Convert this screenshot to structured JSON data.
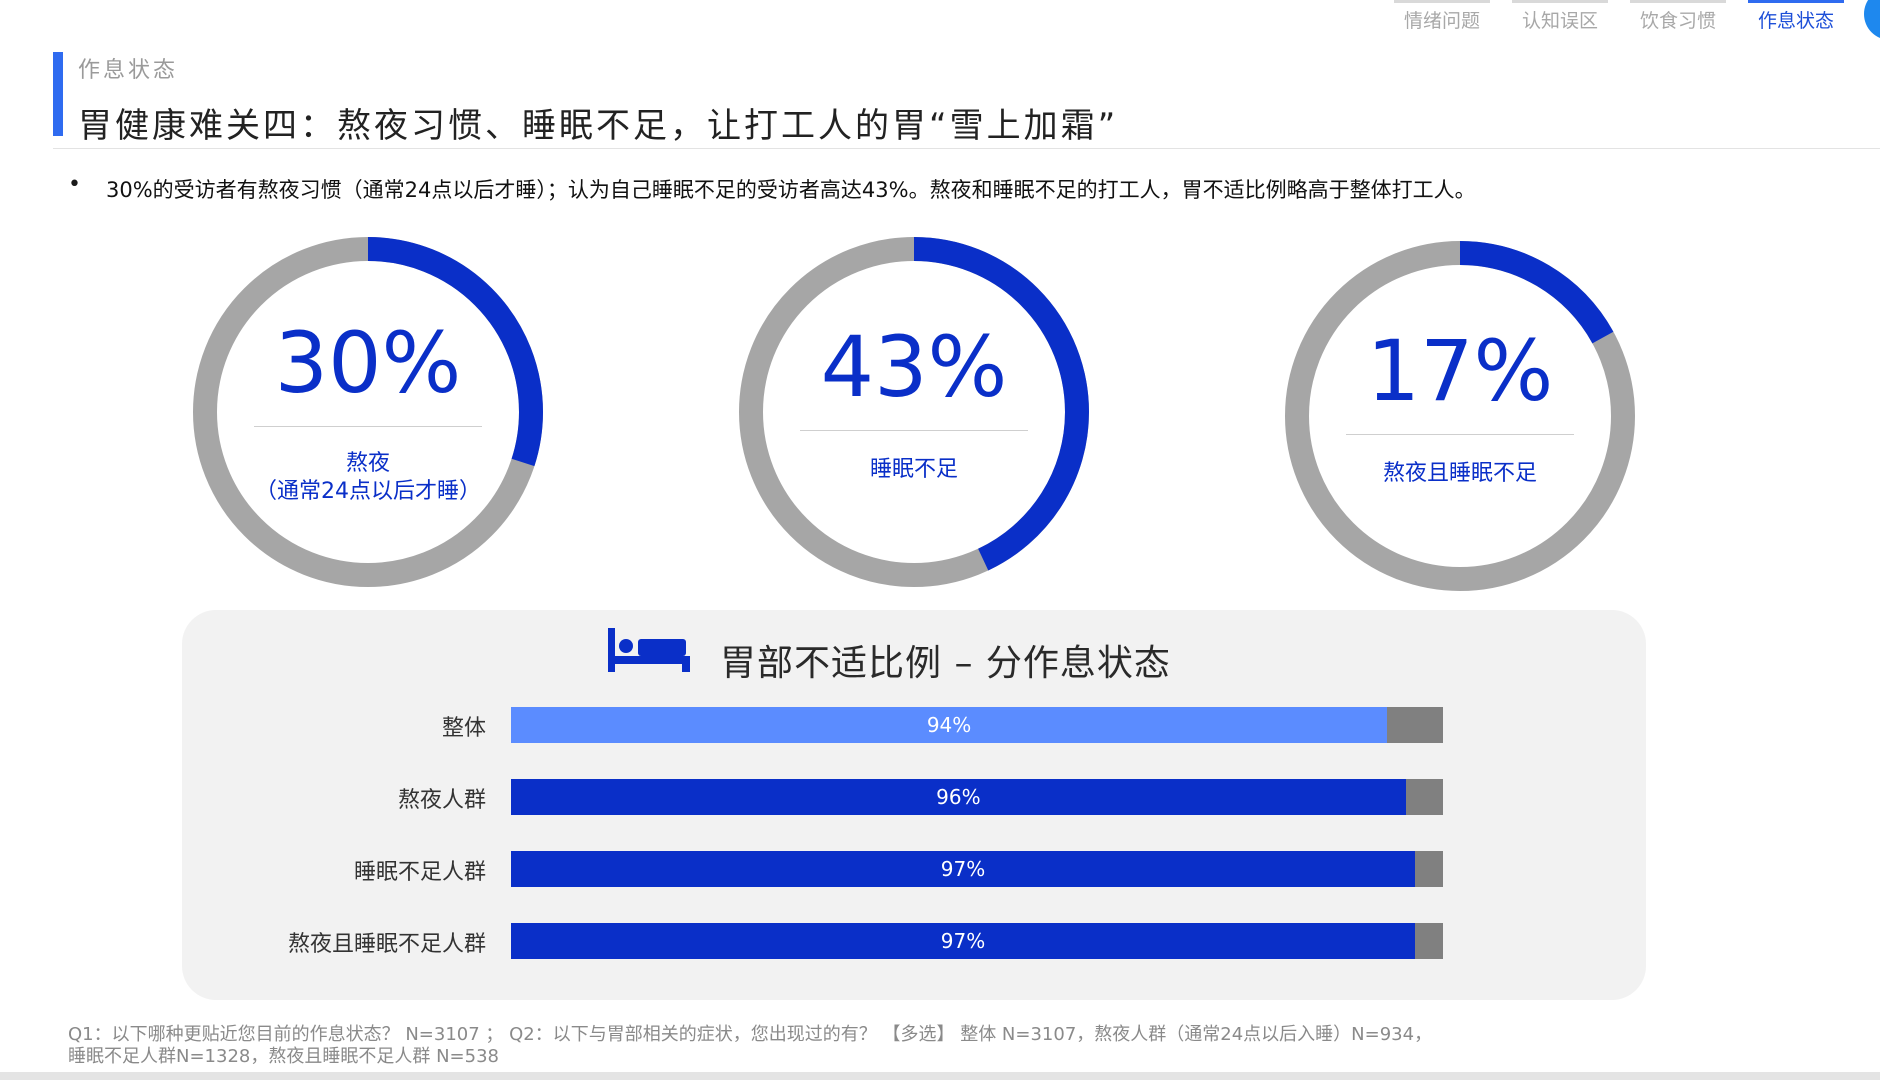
{
  "nav": {
    "tabs": [
      {
        "label": "情绪问题",
        "active": false
      },
      {
        "label": "认知误区",
        "active": false
      },
      {
        "label": "饮食习惯",
        "active": false
      },
      {
        "label": "作息状态",
        "active": true
      }
    ]
  },
  "header": {
    "section": "作息状态",
    "title": "胃健康难关四：熬夜习惯、睡眠不足，让打工人的胃“雪上加霜”"
  },
  "summary": "30%的受访者有熬夜习惯（通常24点以后才睡）；认为自己睡眠不足的受访者高达43%。熬夜和睡眠不足的打工人，胃不适比例略高于整体打工人。",
  "colors": {
    "accent": "#2f6bf0",
    "donut_fill": "#0a2fc8",
    "donut_track": "#a6a6a6",
    "bar_overall": "#5b8cff",
    "bar_group": "#0a2fc8",
    "bar_rest": "#808080"
  },
  "chart_data": [
    {
      "type": "pie",
      "donuts": [
        {
          "value": 30,
          "value_label": "30%",
          "label_lines": [
            "熬夜",
            "（通常24点以后才睡）"
          ]
        },
        {
          "value": 43,
          "value_label": "43%",
          "label_lines": [
            "睡眠不足"
          ]
        },
        {
          "value": 17,
          "value_label": "17%",
          "label_lines": [
            "熬夜且睡眠不足"
          ]
        }
      ]
    },
    {
      "type": "bar",
      "title": "胃部不适比例 – 分作息状态",
      "icon": "bed-icon",
      "orientation": "horizontal",
      "stacked_remainder": true,
      "xlim": [
        0,
        100
      ],
      "categories": [
        "整体",
        "熬夜人群",
        "睡眠不足人群",
        "熬夜且睡眠不足人群"
      ],
      "values": [
        94,
        96,
        97,
        97
      ],
      "value_labels": [
        "94%",
        "96%",
        "97%",
        "97%"
      ]
    }
  ],
  "footnote": {
    "line1": "Q1：以下哪种更贴近您目前的作息状态？ N=3107 ； Q2：以下与胃部相关的症状，您出现过的有？ 【多选】 整体 N=3107，熬夜人群（通常24点以后入睡）N=934，",
    "line2": "睡眠不足人群N=1328，熬夜且睡眠不足人群 N=538"
  }
}
